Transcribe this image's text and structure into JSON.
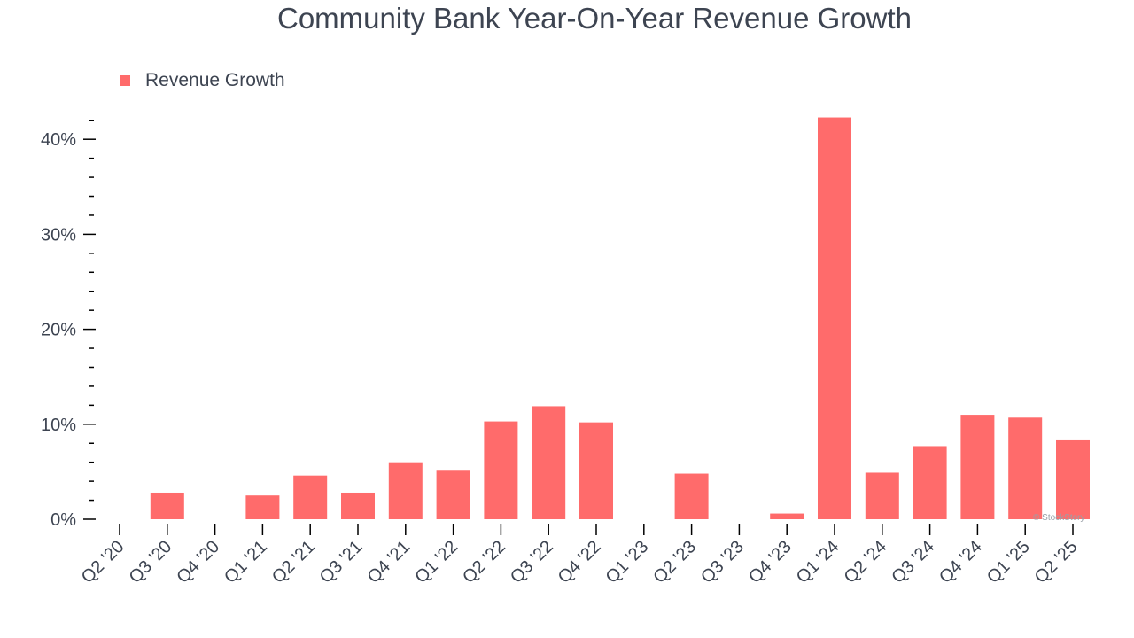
{
  "chart_data": {
    "type": "bar",
    "title": "Community Bank Year-On-Year Revenue Growth",
    "xlabel": "",
    "ylabel": "",
    "categories": [
      "Q2 '20",
      "Q3 '20",
      "Q4 '20",
      "Q1 '21",
      "Q2 '21",
      "Q3 '21",
      "Q4 '21",
      "Q1 '22",
      "Q2 '22",
      "Q3 '22",
      "Q4 '22",
      "Q1 '23",
      "Q2 '23",
      "Q3 '23",
      "Q4 '23",
      "Q1 '24",
      "Q2 '24",
      "Q3 '24",
      "Q4 '24",
      "Q1 '25",
      "Q2 '25"
    ],
    "series": [
      {
        "name": "Revenue Growth",
        "values": [
          0,
          2.8,
          0,
          2.5,
          4.6,
          2.8,
          6.0,
          5.2,
          10.3,
          11.9,
          10.2,
          0,
          4.8,
          0,
          0.6,
          42.3,
          4.9,
          7.7,
          11.0,
          10.7,
          8.4
        ]
      }
    ],
    "ylim": [
      0,
      42.3
    ],
    "y_ticks": [
      "0%",
      "10%",
      "20%",
      "30%",
      "40%"
    ],
    "y_tick_values": [
      0,
      10,
      20,
      30,
      40
    ],
    "y_minor_step": 2,
    "grid": false,
    "legend_position": "top-left",
    "colors": {
      "bar": "#ff6b6b",
      "text": "#3d4451",
      "axis": "#000000"
    }
  },
  "watermark": "© StockStory"
}
